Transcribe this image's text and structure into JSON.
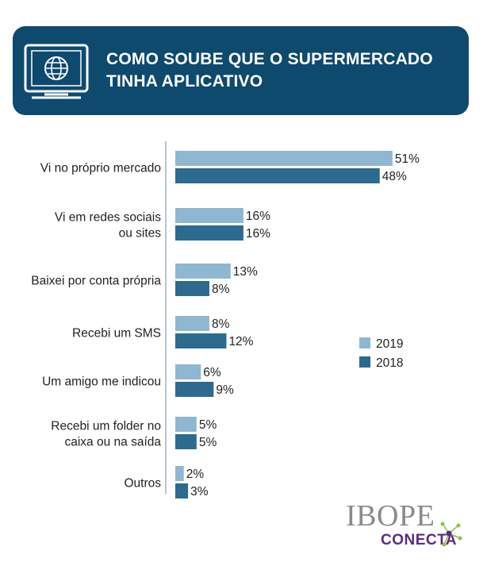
{
  "header": {
    "title_line1": "COMO SOUBE QUE O SUPERMERCADO",
    "title_line2": "TINHA APLICATIVO",
    "icon": "monitor-globe-icon"
  },
  "chart_data": {
    "type": "bar",
    "orientation": "horizontal",
    "categories": [
      [
        "Vi no próprio mercado"
      ],
      [
        "Vi em redes sociais",
        "ou sites"
      ],
      [
        "Baixei por conta própria"
      ],
      [
        "Recebi um SMS"
      ],
      [
        "Um amigo me indicou"
      ],
      [
        "Recebi um folder no",
        "caixa ou na saída"
      ],
      [
        "Outros"
      ]
    ],
    "series": [
      {
        "name": "2019",
        "color": "#8fb7d1",
        "values": [
          51,
          16,
          13,
          8,
          6,
          5,
          2
        ]
      },
      {
        "name": "2018",
        "color": "#2d6a8f",
        "values": [
          48,
          16,
          8,
          12,
          9,
          5,
          3
        ]
      }
    ],
    "value_suffix": "%",
    "legend_position": "right",
    "grid": false
  },
  "logo": {
    "brand": "IBOPE",
    "sub": "CONECTA",
    "accent_colors": [
      "#8bc34a",
      "#5b2c83"
    ]
  }
}
